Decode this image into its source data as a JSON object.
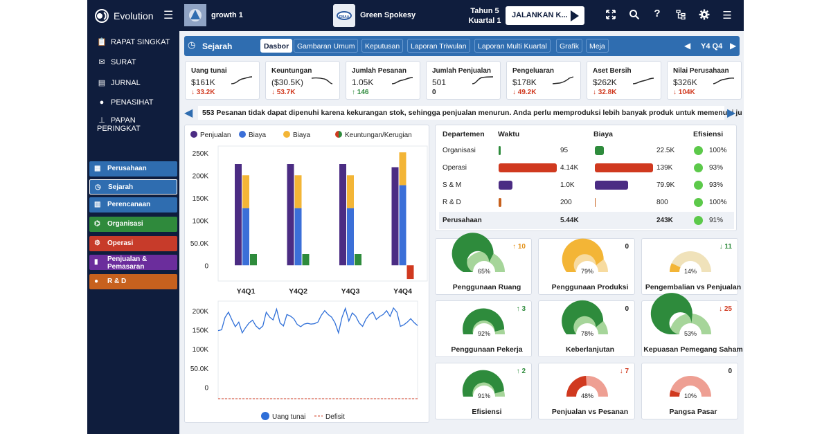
{
  "app": {
    "name": "Evolution",
    "company": "growth 1",
    "opponent": "Green Spokesy",
    "opponent_logo_text": "EMAA",
    "year": "Tahun 5",
    "quarter": "Kuartal 1",
    "run_label": "JALANKAN K..."
  },
  "topicons": [
    "expand-icon",
    "search-icon",
    "help-icon",
    "hierarchy-icon",
    "gear-icon",
    "menu-icon"
  ],
  "sidebar": {
    "nav": [
      {
        "label": "RAPAT SINGKAT",
        "icon": "clipboard-icon"
      },
      {
        "label": "SURAT",
        "icon": "mail-icon"
      },
      {
        "label": "JURNAL",
        "icon": "journal-icon"
      },
      {
        "label": "PENASIHAT",
        "icon": "chat-icon"
      },
      {
        "label": "PAPAN PERINGKAT",
        "icon": "podium-icon"
      }
    ],
    "departments": [
      {
        "label": "Perusahaan",
        "color": "#2f6db0"
      },
      {
        "label": "Sejarah",
        "color": "#2f6db0"
      },
      {
        "label": "Perencanaan",
        "color": "#2f6db0"
      },
      {
        "label": "Organisasi",
        "color": "#2f8a3c"
      },
      {
        "label": "Operasi",
        "color": "#c73b2a"
      },
      {
        "label": "Penjualan & Pemasaran",
        "color": "#6b2d9c"
      },
      {
        "label": "R & D",
        "color": "#c7611e"
      }
    ]
  },
  "tabbar": {
    "title": "Sejarah",
    "tabs": [
      "Dasbor",
      "Gambaran Umum",
      "Keputusan",
      "Laporan Triwulan",
      "Laporan Multi Kuartal",
      "Grafik",
      "Meja"
    ],
    "active": "Dasbor",
    "period": "Y4 Q4"
  },
  "kpis": [
    {
      "label": "Uang tunai",
      "value": "$161K",
      "change": "33.2K",
      "dir": "down"
    },
    {
      "label": "Keuntungan",
      "value": "($30.5K)",
      "change": "53.7K",
      "dir": "down"
    },
    {
      "label": "Jumlah Pesanan",
      "value": "1.05K",
      "change": "146",
      "dir": "up"
    },
    {
      "label": "Jumlah Penjualan",
      "value": "501",
      "change": "0",
      "dir": "none"
    },
    {
      "label": "Pengeluaran",
      "value": "$178K",
      "change": "49.2K",
      "dir": "down"
    },
    {
      "label": "Aset Bersih",
      "value": "$262K",
      "change": "32.8K",
      "dir": "down"
    },
    {
      "label": "Nilai Perusahaan",
      "value": "$326K",
      "change": "104K",
      "dir": "down"
    }
  ],
  "ticker": "553 Pesanan tidak dapat dipenuhi karena kekurangan stok, sehingga penjualan menurun. Anda perlu memproduksi lebih banyak produk untuk memenuhi ju",
  "chart_data": [
    {
      "type": "bar",
      "legend": [
        "Penjualan",
        "Biaya",
        "Biaya",
        "Keuntungan/Kerugian"
      ],
      "colors": {
        "sales": "#4b2c83",
        "cost1": "#3b6fd8",
        "cost2": "#f3b536",
        "profit": "#2e8b3c",
        "loss": "#d0391f"
      },
      "categories": [
        "Y4Q1",
        "Y4Q2",
        "Y4Q3",
        "Y4Q4"
      ],
      "y_ticks": [
        "250K",
        "200K",
        "150K",
        "100K",
        "50.0K",
        "0"
      ],
      "ylim": [
        -35000,
        265000
      ],
      "series": [
        {
          "name": "Penjualan",
          "values": [
            225000,
            225000,
            225000,
            218000
          ]
        },
        {
          "name": "Biaya",
          "values": [
            127000,
            127000,
            127000,
            178000
          ]
        },
        {
          "name": "Biaya",
          "values": [
            73000,
            73000,
            73000,
            73000
          ]
        },
        {
          "name": "Keuntungan/Kerugian",
          "values": [
            25000,
            25000,
            25000,
            -30500
          ]
        }
      ]
    },
    {
      "type": "line",
      "legend": [
        "Uang tunai",
        "Defisit"
      ],
      "y_ticks": [
        "200K",
        "150K",
        "100K",
        "50.0K",
        "0"
      ],
      "ylim": [
        -30000,
        225000
      ],
      "deficit_level": -30000,
      "series": [
        {
          "name": "Uang tunai",
          "values": [
            148000,
            150000,
            182000,
            196000,
            176000,
            158000,
            170000,
            142000,
            156000,
            168000,
            175000,
            160000,
            152000,
            160000,
            196000,
            183000,
            176000,
            204000,
            168000,
            160000,
            190000,
            186000,
            179000,
            164000,
            158000,
            165000,
            167000,
            165000,
            166000,
            170000,
            188000,
            200000,
            190000,
            183000,
            168000,
            142000,
            182000,
            206000,
            173000,
            194000,
            186000,
            168000,
            159000,
            178000,
            190000,
            196000,
            177000,
            185000,
            190000,
            200000,
            185000,
            207000,
            196000,
            159000,
            163000,
            170000,
            179000,
            169000,
            161000
          ]
        }
      ]
    }
  ],
  "dept_table": {
    "headers": [
      "Departemen",
      "Waktu",
      "Biaya",
      "Efisiensi"
    ],
    "rows": [
      {
        "name": "Organisasi",
        "time": "95",
        "time_frac": 0.02,
        "time_color": "#2e8b3c",
        "cost": "22.5K",
        "cost_frac": 0.16,
        "cost_color": "#2e8b3c",
        "eff": "100%"
      },
      {
        "name": "Operasi",
        "time": "4.14K",
        "time_frac": 1.0,
        "time_color": "#d0391f",
        "cost": "139K",
        "cost_frac": 1.0,
        "cost_color": "#d0391f",
        "eff": "93%"
      },
      {
        "name": "S & M",
        "time": "1.0K",
        "time_frac": 0.24,
        "time_color": "#4b2c83",
        "cost": "79.9K",
        "cost_frac": 0.57,
        "cost_color": "#4b2c83",
        "eff": "93%"
      },
      {
        "name": "R & D",
        "time": "200",
        "time_frac": 0.05,
        "time_color": "#c7611e",
        "cost": "800",
        "cost_frac": 0.006,
        "cost_color": "#c7611e",
        "eff": "100%"
      }
    ],
    "total": {
      "name": "Perusahaan",
      "time": "5.44K",
      "cost": "243K",
      "eff": "91%"
    }
  },
  "gauges": [
    {
      "name": "Penggunaan Ruang",
      "pct": "65%",
      "frac": 0.65,
      "color": "#2e8b3c",
      "track": "#a6d59a",
      "change": "10",
      "dir": "up-orange"
    },
    {
      "name": "Penggunaan Produksi",
      "pct": "79%",
      "frac": 0.79,
      "color": "#f3b536",
      "track": "#f7dba0",
      "change": "0",
      "dir": "none"
    },
    {
      "name": "Pengembalian vs Penjualan",
      "pct": "14%",
      "frac": 0.14,
      "color": "#f3b536",
      "track": "#f0e2ba",
      "change": "11",
      "dir": "down-green"
    },
    {
      "name": "Penggunaan Pekerja",
      "pct": "92%",
      "frac": 0.92,
      "color": "#2e8b3c",
      "track": "#a6d59a",
      "change": "3",
      "dir": "up"
    },
    {
      "name": "Keberlanjutan",
      "pct": "78%",
      "frac": 0.78,
      "color": "#2e8b3c",
      "track": "#a6d59a",
      "change": "0",
      "dir": "none"
    },
    {
      "name": "Kepuasan Pemegang Saham",
      "pct": "53%",
      "frac": 0.53,
      "color": "#2e8b3c",
      "track": "#a6d59a",
      "change": "25",
      "dir": "down"
    },
    {
      "name": "Efisiensi",
      "pct": "91%",
      "frac": 0.91,
      "color": "#2e8b3c",
      "track": "#a6d59a",
      "change": "2",
      "dir": "up"
    },
    {
      "name": "Penjualan vs Pesanan",
      "pct": "48%",
      "frac": 0.48,
      "color": "#d0391f",
      "track": "#ee9f93",
      "change": "7",
      "dir": "down"
    },
    {
      "name": "Pangsa Pasar",
      "pct": "10%",
      "frac": 0.1,
      "color": "#d0391f",
      "track": "#ee9f93",
      "change": "0",
      "dir": "none"
    }
  ]
}
